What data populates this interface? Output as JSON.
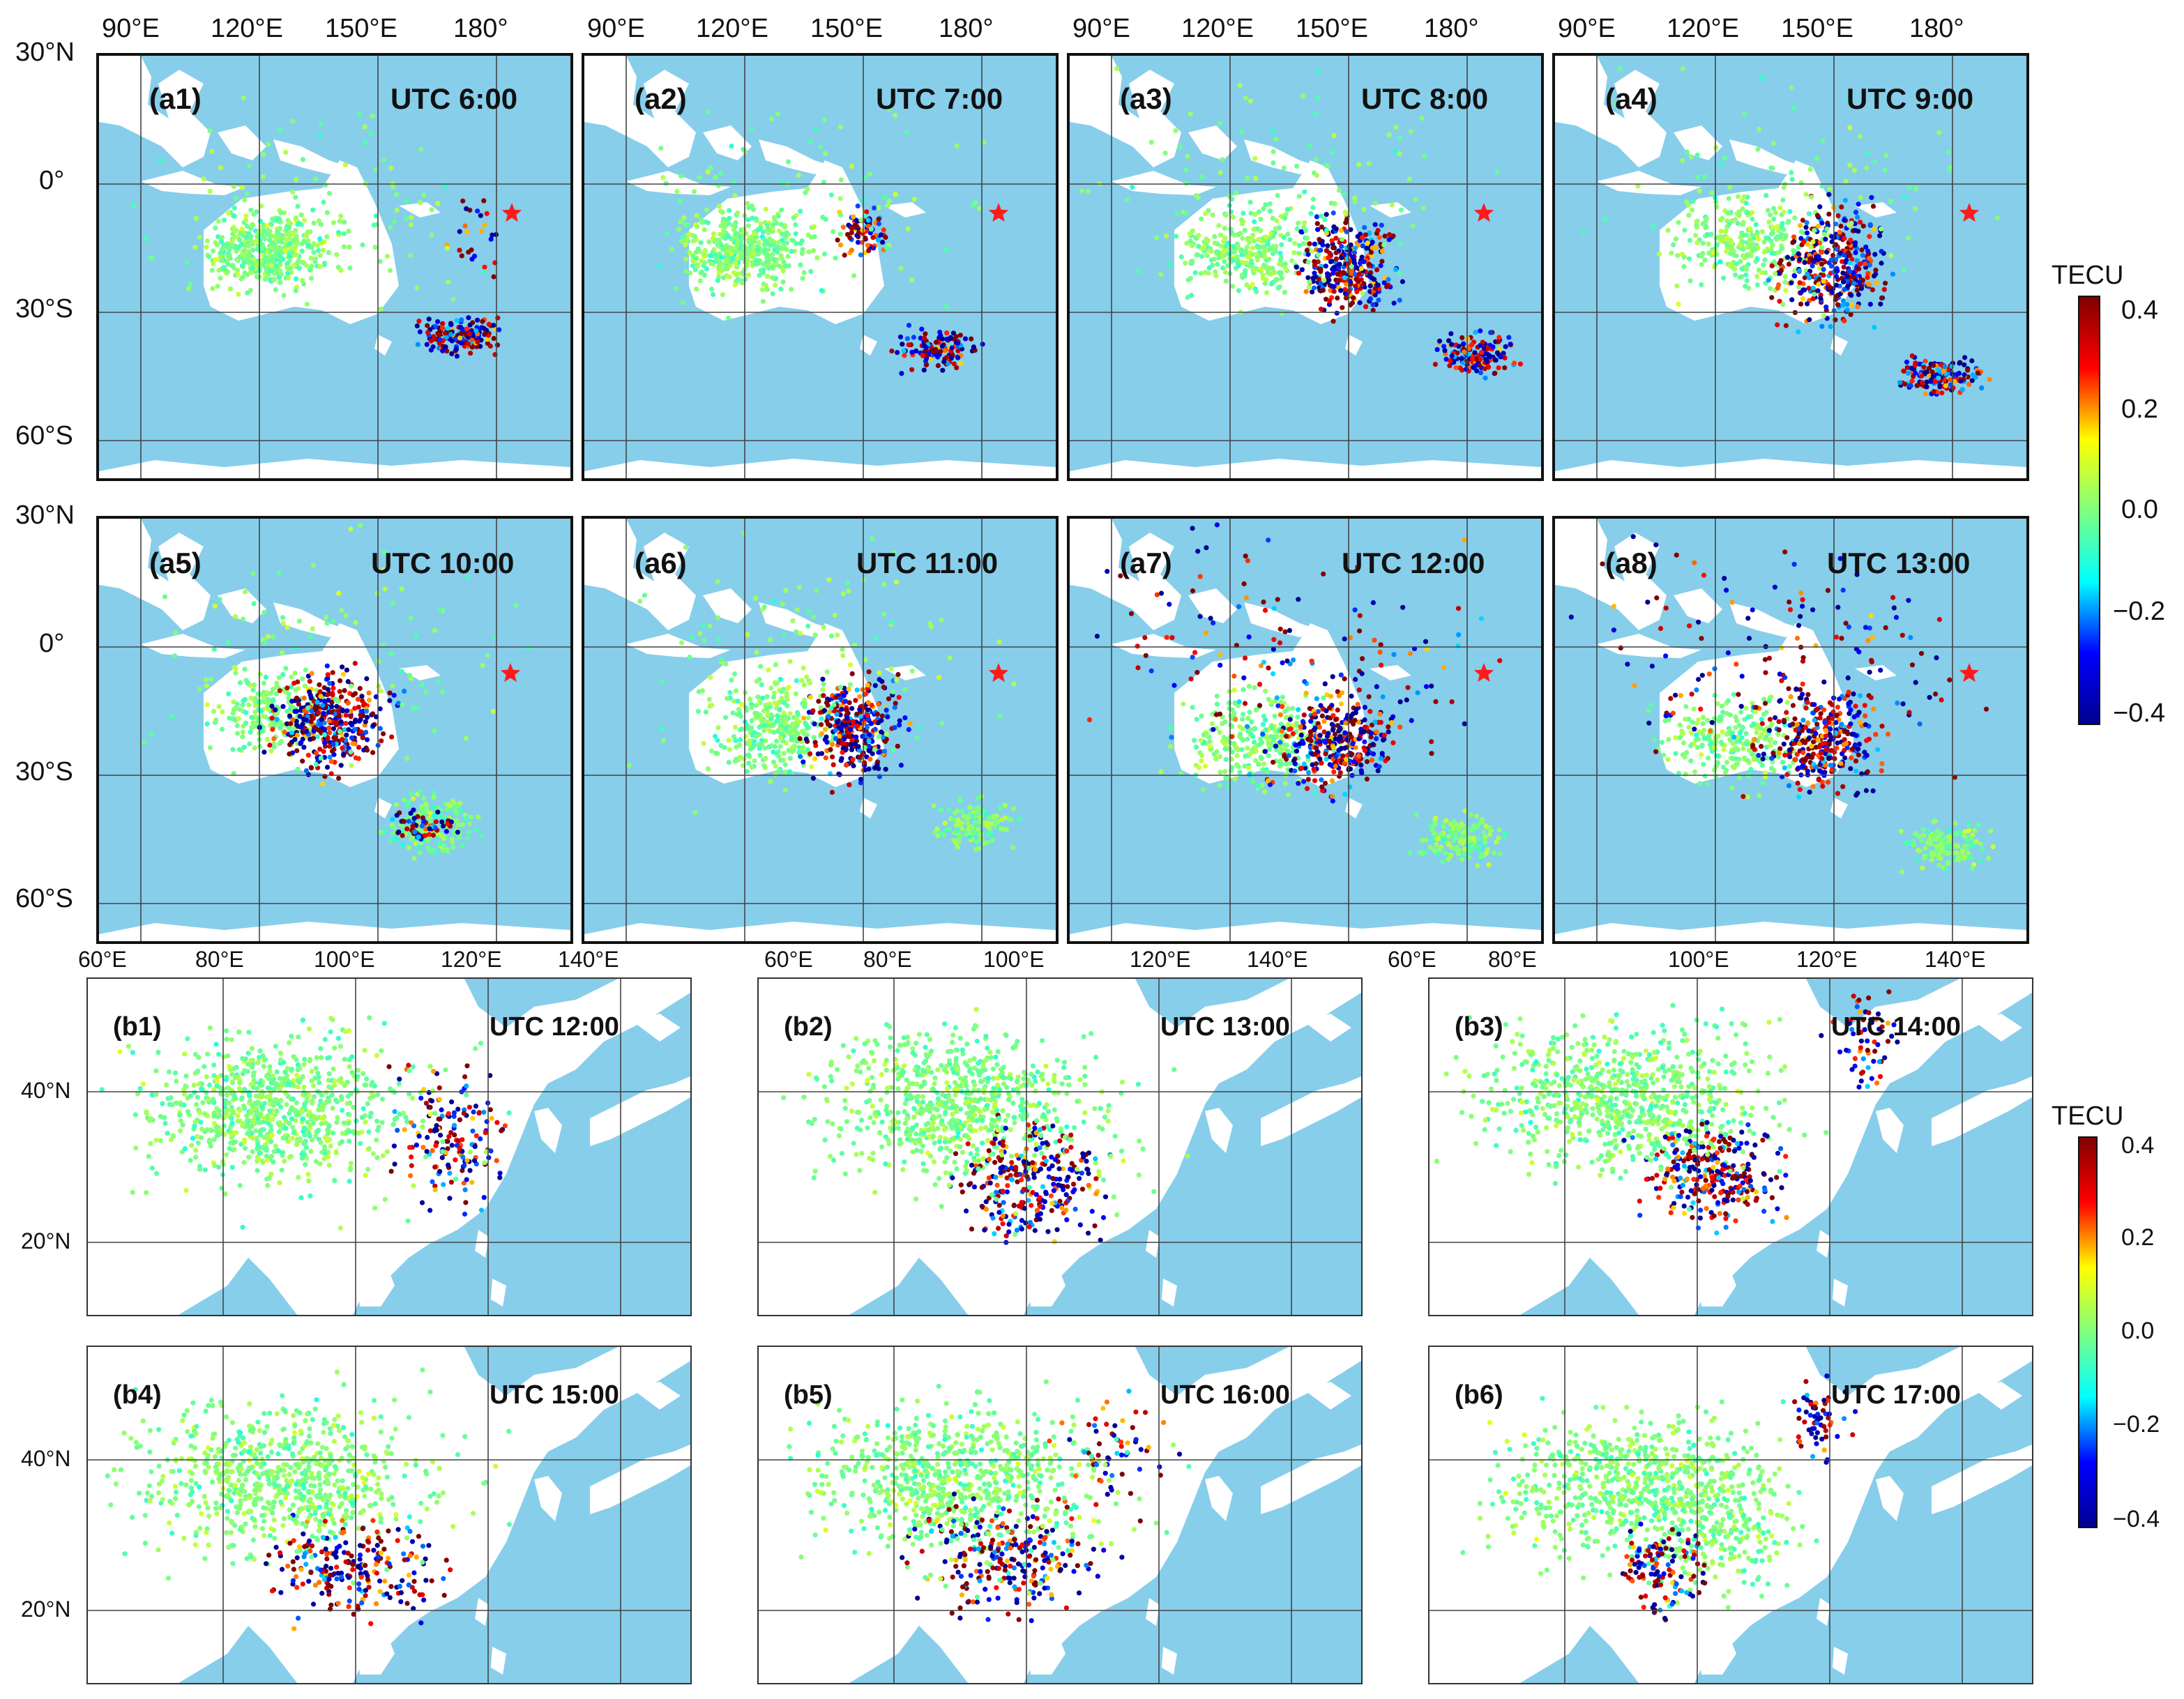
{
  "panels_a": [
    {
      "id": "(a1)",
      "utc": "UTC 6:00"
    },
    {
      "id": "(a2)",
      "utc": "UTC 7:00"
    },
    {
      "id": "(a3)",
      "utc": "UTC 8:00"
    },
    {
      "id": "(a4)",
      "utc": "UTC 9:00"
    },
    {
      "id": "(a5)",
      "utc": "UTC 10:00"
    },
    {
      "id": "(a6)",
      "utc": "UTC 11:00"
    },
    {
      "id": "(a7)",
      "utc": "UTC 12:00"
    },
    {
      "id": "(a8)",
      "utc": "UTC 13:00"
    }
  ],
  "panels_b": [
    {
      "id": "(b1)",
      "utc": "UTC 12:00"
    },
    {
      "id": "(b2)",
      "utc": "UTC 13:00"
    },
    {
      "id": "(b3)",
      "utc": "UTC 14:00"
    },
    {
      "id": "(b4)",
      "utc": "UTC 15:00"
    },
    {
      "id": "(b5)",
      "utc": "UTC 16:00"
    },
    {
      "id": "(b6)",
      "utc": "UTC 17:00"
    }
  ],
  "a_top_ticks": [
    "90°E",
    "120°E",
    "150°E",
    "180°"
  ],
  "a_lat_ticks": [
    "30°N",
    "0°",
    "30°S",
    "60°S"
  ],
  "a_bottom_ticks": [
    "60°E",
    "80°E",
    "100°E",
    "120°E",
    "140°E",
    "60°E",
    "80°E",
    "100°E",
    "120°E",
    "140°E",
    "60°E",
    "80°E",
    "100°E",
    "120°E",
    "140°E",
    "80°E",
    "100°E",
    "120°E",
    "140°E"
  ],
  "b_lat_ticks": [
    "40°N",
    "20°N"
  ],
  "colorbar": {
    "title": "TECU",
    "ticks": [
      "0.4",
      "0.2",
      "0.0",
      "−0.2",
      "−0.4"
    ],
    "range": [
      -0.4,
      0.4
    ],
    "colormap": "jet",
    "colors": [
      "#00008f",
      "#0000ff",
      "#00ffff",
      "#7fff7f",
      "#ffff00",
      "#ff0000",
      "#800000"
    ]
  },
  "colors": {
    "ocean": "#87CEEB",
    "land": "#ffffff",
    "epicenter_star": "#ff1a1a"
  },
  "icons": {
    "epicenter": "red-star-icon"
  }
}
